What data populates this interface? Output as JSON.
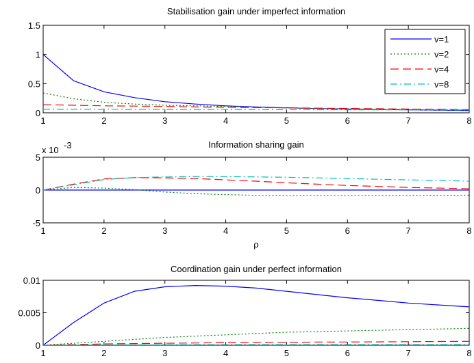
{
  "chart_data": [
    {
      "type": "line",
      "title": "Stabilisation gain under imperfect information",
      "xlabel": "",
      "ylabel": "",
      "xlim": [
        1,
        8
      ],
      "ylim": [
        0,
        1.5
      ],
      "xticks": [
        1,
        2,
        3,
        4,
        5,
        6,
        7,
        8
      ],
      "yticks": [
        0,
        0.5,
        1,
        1.5
      ],
      "ytick_labels": [
        "0",
        "0.5",
        "1",
        "1.5"
      ],
      "legend": "top-right",
      "grid": false,
      "x": [
        1,
        1.5,
        2,
        2.5,
        3,
        3.5,
        4,
        4.5,
        5,
        5.5,
        6,
        6.5,
        7,
        7.5,
        8
      ],
      "series": [
        {
          "name": "v=1",
          "color": "#0000ff",
          "dash": "solid",
          "values": [
            1.0,
            0.55,
            0.36,
            0.26,
            0.19,
            0.15,
            0.12,
            0.1,
            0.085,
            0.073,
            0.064,
            0.056,
            0.05,
            0.045,
            0.04
          ]
        },
        {
          "name": "v=2",
          "color": "#008000",
          "dash": "dotted",
          "values": [
            0.34,
            0.24,
            0.18,
            0.15,
            0.13,
            0.12,
            0.11,
            0.095,
            0.085,
            0.075,
            0.068,
            0.062,
            0.057,
            0.053,
            0.05
          ]
        },
        {
          "name": "v=4",
          "color": "#ff0000",
          "dash": "dashed",
          "values": [
            0.14,
            0.13,
            0.12,
            0.115,
            0.11,
            0.1,
            0.095,
            0.09,
            0.085,
            0.08,
            0.075,
            0.07,
            0.065,
            0.06,
            0.055
          ]
        },
        {
          "name": "v=8",
          "color": "#00bfbf",
          "dash": "dashdot",
          "values": [
            0.06,
            0.06,
            0.06,
            0.059,
            0.058,
            0.057,
            0.056,
            0.055,
            0.054,
            0.053,
            0.052,
            0.051,
            0.05,
            0.049,
            0.048
          ]
        }
      ]
    },
    {
      "type": "line",
      "title": "Information sharing gain",
      "xlabel": "ρ",
      "ylabel": "",
      "yexponent_label": "x 10",
      "yexponent_power": "-3",
      "xlim": [
        1,
        8
      ],
      "ylim": [
        -5,
        5
      ],
      "xticks": [
        1,
        2,
        3,
        4,
        5,
        6,
        7,
        8
      ],
      "yticks": [
        -5,
        0,
        5
      ],
      "ytick_labels": [
        "-5",
        "0",
        "5"
      ],
      "grid": false,
      "x": [
        1,
        1.5,
        2,
        2.5,
        3,
        3.5,
        4,
        4.5,
        5,
        5.5,
        6,
        6.5,
        7,
        7.5,
        8
      ],
      "series": [
        {
          "color": "#0000ff",
          "dash": "solid",
          "values": [
            0,
            0,
            0,
            0,
            0,
            0,
            0,
            0,
            0,
            0,
            0,
            0,
            0,
            0,
            0
          ]
        },
        {
          "color": "#008000",
          "dash": "dotted",
          "values": [
            0,
            0.4,
            0.3,
            0.05,
            -0.3,
            -0.55,
            -0.7,
            -0.8,
            -0.85,
            -0.85,
            -0.85,
            -0.85,
            -0.82,
            -0.8,
            -0.78
          ]
        },
        {
          "color": "#ff0000",
          "dash": "dashed",
          "values": [
            0,
            0.9,
            1.7,
            1.9,
            1.85,
            1.75,
            1.55,
            1.35,
            1.1,
            0.9,
            0.7,
            0.55,
            0.4,
            0.3,
            0.2
          ]
        },
        {
          "color": "#00bfbf",
          "dash": "dashdot",
          "values": [
            0,
            0.8,
            1.6,
            1.9,
            2.0,
            2.05,
            2.05,
            2.0,
            1.95,
            1.85,
            1.75,
            1.65,
            1.55,
            1.45,
            1.35
          ]
        }
      ]
    },
    {
      "type": "line",
      "title": "Coordination gain under perfect information",
      "xlabel": "",
      "ylabel": "",
      "xlim": [
        1,
        8
      ],
      "ylim": [
        0,
        0.01
      ],
      "xticks": [
        1,
        2,
        3,
        4,
        5,
        6,
        7,
        8
      ],
      "yticks": [
        0,
        0.005,
        0.01
      ],
      "ytick_labels": [
        "0",
        "0.005",
        "0.01"
      ],
      "grid": false,
      "x": [
        1,
        1.5,
        2,
        2.5,
        3,
        3.5,
        4,
        4.5,
        5,
        5.5,
        6,
        6.5,
        7,
        7.5,
        8
      ],
      "series": [
        {
          "color": "#0000ff",
          "dash": "solid",
          "values": [
            0,
            0.0035,
            0.0065,
            0.0083,
            0.009,
            0.0092,
            0.0091,
            0.0088,
            0.0083,
            0.0078,
            0.0073,
            0.0069,
            0.0065,
            0.0062,
            0.0059
          ]
        },
        {
          "color": "#008000",
          "dash": "dotted",
          "values": [
            0,
            0.0003,
            0.0006,
            0.0009,
            0.0012,
            0.0014,
            0.0016,
            0.0018,
            0.002,
            0.0021,
            0.0022,
            0.0023,
            0.0024,
            0.0025,
            0.0026
          ]
        },
        {
          "color": "#ff0000",
          "dash": "dashed",
          "values": [
            0,
            0.0001,
            0.0002,
            0.00025,
            0.0003,
            0.00035,
            0.0004,
            0.00042,
            0.00045,
            0.00048,
            0.0005,
            0.00052,
            0.00055,
            0.00058,
            0.0006
          ]
        },
        {
          "color": "#00bfbf",
          "dash": "dashdot",
          "values": [
            0,
            3e-05,
            5e-05,
            6e-05,
            7e-05,
            8e-05,
            8e-05,
            9e-05,
            9e-05,
            0.0001,
            0.0001,
            0.0001,
            0.0001,
            0.0001,
            0.0001
          ]
        }
      ]
    }
  ]
}
